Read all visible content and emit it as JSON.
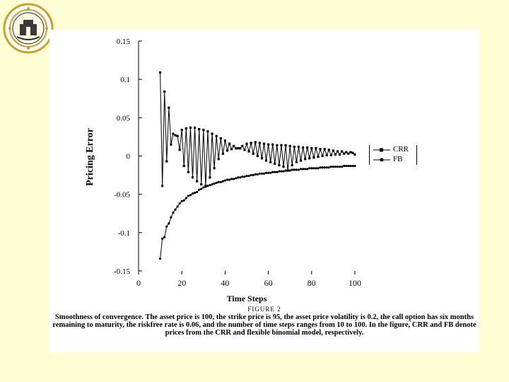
{
  "logo": {
    "name": "university-seal-logo",
    "ring_color": "#c9a227"
  },
  "chart_data": {
    "type": "line",
    "title": "",
    "xlabel": "Time Steps",
    "ylabel": "Pricing Error",
    "xlim": [
      0,
      100
    ],
    "ylim": [
      -0.15,
      0.15
    ],
    "xticks": [
      0,
      20,
      40,
      60,
      80,
      100
    ],
    "yticks": [
      0.15,
      0.1,
      0.05,
      0,
      -0.05,
      -0.1,
      -0.15
    ],
    "ytick_labels": [
      "0.15",
      "0.1",
      "0.05",
      "0",
      "-0.05",
      "-0.1",
      "-0.15"
    ],
    "legend": "right",
    "grid": false,
    "series": [
      {
        "name": "CRR",
        "marker": "square",
        "x": [
          10,
          11,
          12,
          13,
          14,
          15,
          16,
          17,
          18,
          19,
          20,
          21,
          22,
          23,
          24,
          25,
          26,
          27,
          28,
          29,
          30,
          31,
          32,
          33,
          34,
          35,
          36,
          37,
          38,
          39,
          40,
          41,
          42,
          43,
          44,
          45,
          46,
          47,
          48,
          49,
          50,
          51,
          52,
          53,
          54,
          55,
          56,
          57,
          58,
          59,
          60,
          61,
          62,
          63,
          64,
          65,
          66,
          67,
          68,
          69,
          70,
          71,
          72,
          73,
          74,
          75,
          76,
          77,
          78,
          79,
          80,
          81,
          82,
          83,
          84,
          85,
          86,
          87,
          88,
          89,
          90,
          91,
          92,
          93,
          94,
          95,
          96,
          97,
          98,
          99,
          100
        ],
        "y": [
          0.109,
          -0.039,
          0.084,
          -0.007,
          0.063,
          0.015,
          0.029,
          0.027,
          0.026,
          0.008,
          0.034,
          -0.013,
          0.036,
          -0.021,
          0.037,
          -0.028,
          0.037,
          -0.033,
          0.035,
          -0.037,
          0.034,
          -0.039,
          0.032,
          -0.028,
          0.029,
          -0.016,
          0.026,
          -0.004,
          0.023,
          0.003,
          0.02,
          0.007,
          0.016,
          0.009,
          0.013,
          0.01,
          0.01,
          0.01,
          0.013,
          0.008,
          0.016,
          0.006,
          0.017,
          0.003,
          0.018,
          0.0,
          0.017,
          -0.003,
          0.016,
          -0.006,
          0.015,
          -0.008,
          0.015,
          -0.01,
          0.014,
          -0.012,
          0.014,
          -0.014,
          0.014,
          -0.019,
          0.013,
          -0.012,
          0.012,
          -0.008,
          0.012,
          -0.006,
          0.011,
          -0.004,
          0.011,
          -0.003,
          0.01,
          -0.002,
          0.01,
          -0.001,
          0.009,
          0.0,
          0.009,
          0.001,
          0.008,
          0.001,
          0.007,
          0.002,
          0.006,
          0.002,
          0.006,
          0.003,
          0.005,
          0.003,
          0.005,
          0.004,
          0.002
        ]
      },
      {
        "name": "FB",
        "marker": "circle",
        "x": [
          10,
          11,
          12,
          13,
          14,
          15,
          16,
          17,
          18,
          19,
          20,
          21,
          22,
          23,
          24,
          25,
          26,
          27,
          28,
          29,
          30,
          31,
          32,
          33,
          34,
          35,
          36,
          37,
          38,
          39,
          40,
          41,
          42,
          43,
          44,
          45,
          46,
          47,
          48,
          49,
          50,
          51,
          52,
          53,
          54,
          55,
          56,
          57,
          58,
          59,
          60,
          61,
          62,
          63,
          64,
          65,
          66,
          67,
          68,
          69,
          70,
          71,
          72,
          73,
          74,
          75,
          76,
          77,
          78,
          79,
          80,
          81,
          82,
          83,
          84,
          85,
          86,
          87,
          88,
          89,
          90,
          91,
          92,
          93,
          94,
          95,
          96,
          97,
          98,
          99,
          100
        ],
        "y": [
          -0.134,
          -0.108,
          -0.106,
          -0.092,
          -0.088,
          -0.08,
          -0.074,
          -0.07,
          -0.066,
          -0.062,
          -0.059,
          -0.058,
          -0.055,
          -0.052,
          -0.051,
          -0.049,
          -0.048,
          -0.047,
          -0.044,
          -0.043,
          -0.041,
          -0.04,
          -0.039,
          -0.038,
          -0.037,
          -0.036,
          -0.035,
          -0.034,
          -0.034,
          -0.033,
          -0.032,
          -0.031,
          -0.031,
          -0.03,
          -0.03,
          -0.029,
          -0.028,
          -0.028,
          -0.027,
          -0.027,
          -0.026,
          -0.026,
          -0.025,
          -0.025,
          -0.024,
          -0.024,
          -0.023,
          -0.023,
          -0.023,
          -0.022,
          -0.022,
          -0.022,
          -0.021,
          -0.021,
          -0.021,
          -0.02,
          -0.02,
          -0.02,
          -0.019,
          -0.019,
          -0.019,
          -0.018,
          -0.018,
          -0.018,
          -0.018,
          -0.017,
          -0.017,
          -0.017,
          -0.017,
          -0.016,
          -0.016,
          -0.016,
          -0.016,
          -0.016,
          -0.015,
          -0.015,
          -0.015,
          -0.015,
          -0.015,
          -0.014,
          -0.014,
          -0.014,
          -0.014,
          -0.014,
          -0.014,
          -0.013,
          -0.013,
          -0.013,
          -0.013,
          -0.013,
          -0.013
        ]
      }
    ]
  },
  "caption": {
    "figure_label": "FIGURE 2",
    "text": "Smoothness of convergence. The asset price is 100, the strike price is 95, the asset price volatility is 0.2, the call option has six months remaining to maturity, the riskfree rate is 0.06, and the number of time steps ranges from 10 to 100. In the figure, CRR and FB denote prices from the CRR and flexible binomial model, respectively."
  }
}
